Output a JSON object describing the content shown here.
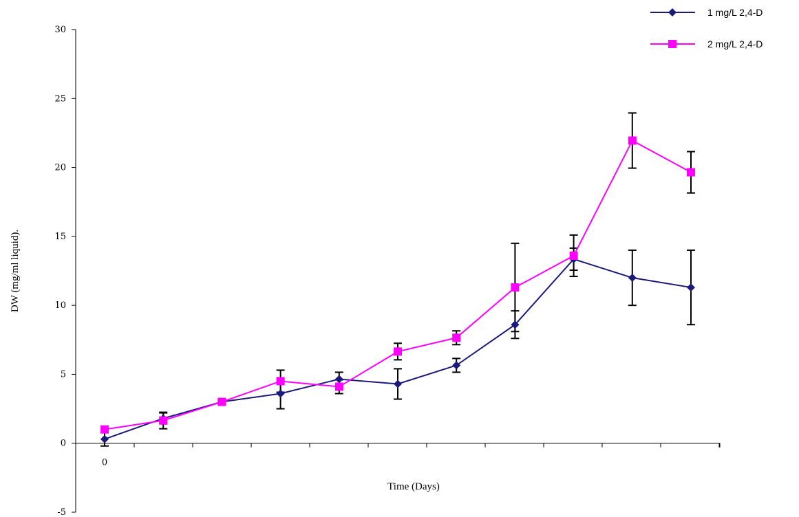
{
  "chart_data": {
    "type": "line",
    "title": "",
    "xlabel": "Time (Days)",
    "ylabel": "DW (mg/ml liquid).",
    "ylim": [
      -5,
      30
    ],
    "yticks": [
      -5,
      0,
      5,
      10,
      15,
      20,
      25,
      30
    ],
    "xtick_labels": [
      "0"
    ],
    "grid": false,
    "legend_position": "top-right",
    "x": [
      0,
      1,
      2,
      3,
      4,
      5,
      6,
      7,
      8,
      9,
      10
    ],
    "series": [
      {
        "name": "1 mg/L 2,4-D",
        "color": "#1a1a7a",
        "marker": "diamond",
        "values": [
          0.3,
          1.8,
          3.0,
          3.6,
          4.65,
          4.3,
          5.65,
          8.6,
          13.35,
          12.0,
          11.3
        ],
        "errors": [
          0.5,
          0.4,
          0.1,
          1.1,
          0.5,
          1.1,
          0.5,
          1.0,
          0.8,
          2.0,
          2.7
        ]
      },
      {
        "name": "2 mg/L 2,4-D",
        "color": "#ff00ff",
        "marker": "square",
        "values": [
          1.0,
          1.65,
          3.0,
          4.5,
          4.1,
          6.65,
          7.65,
          11.3,
          13.6,
          21.95,
          19.65
        ],
        "errors": [
          0.1,
          0.6,
          0.1,
          0.8,
          0.5,
          0.6,
          0.5,
          3.2,
          1.5,
          2.0,
          1.5
        ]
      }
    ]
  }
}
